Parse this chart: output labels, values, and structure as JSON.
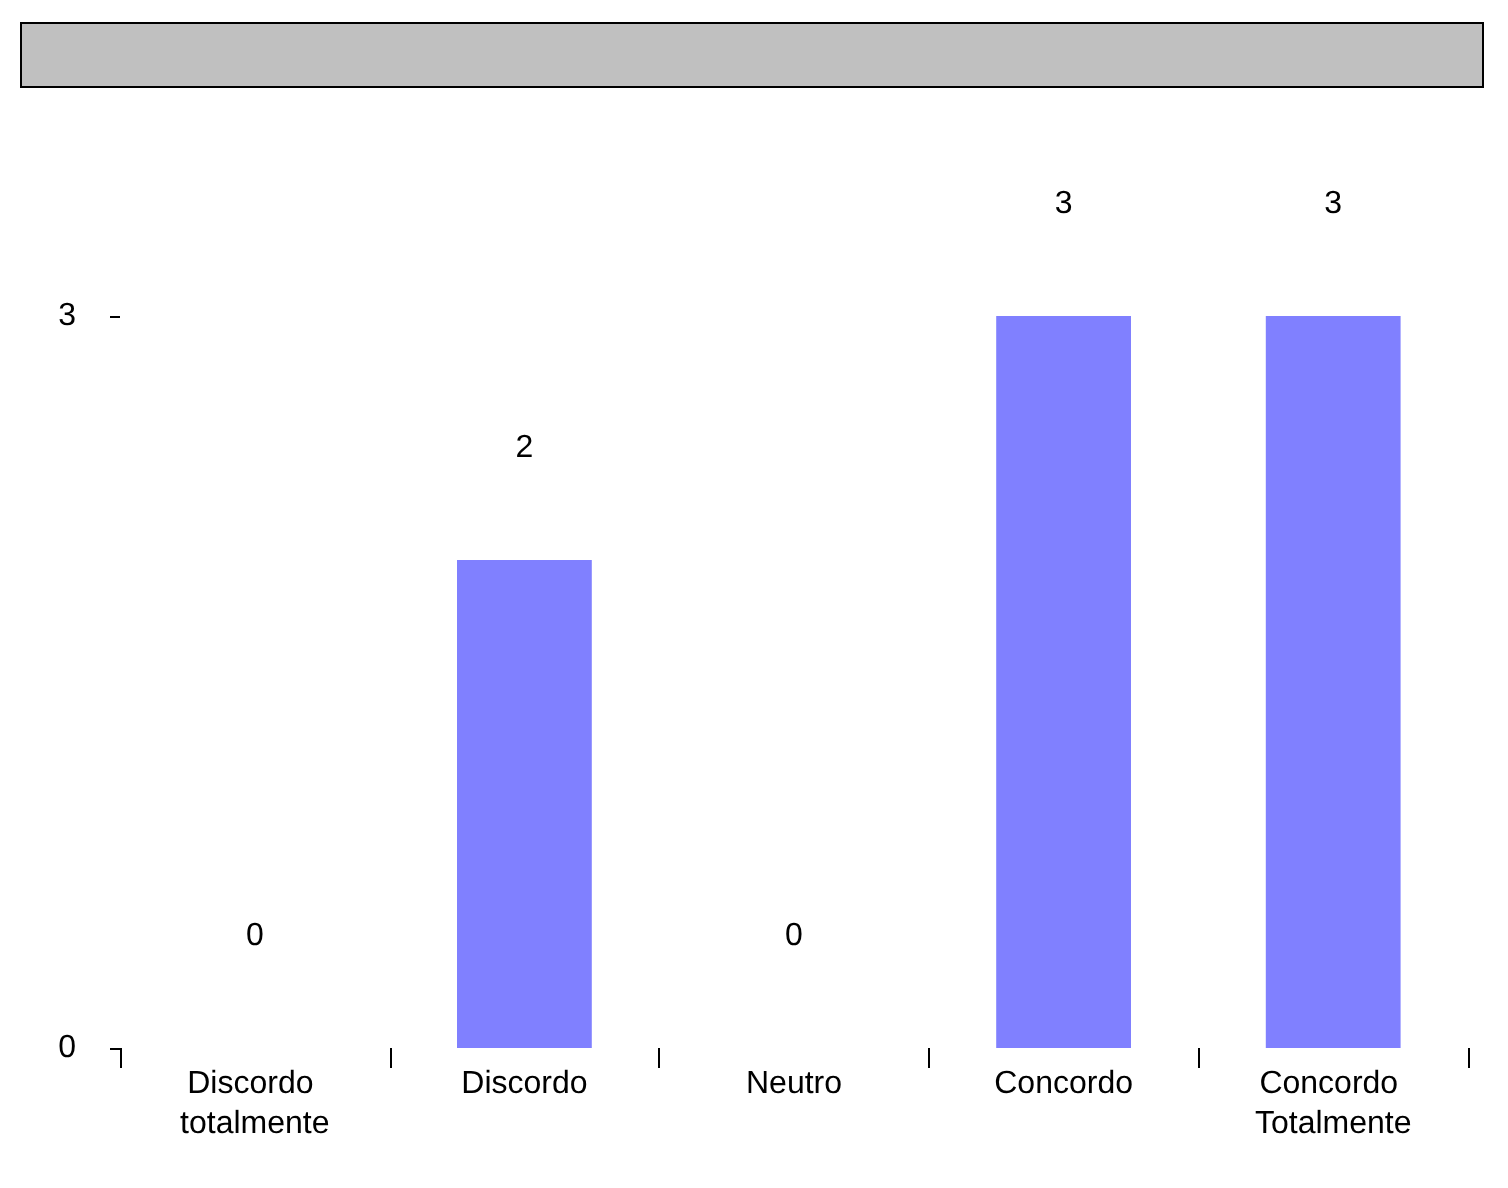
{
  "chart_data": {
    "type": "bar",
    "categories": [
      "Discordo totalmente",
      "Discordo",
      "Neutro",
      "Concordo",
      "Concordo Totalmente"
    ],
    "values": [
      0,
      2,
      0,
      3,
      3
    ],
    "color": "#8080ff",
    "ylim": [
      0,
      3
    ],
    "yticks": [
      0,
      3
    ],
    "data_labels": true,
    "grid": false
  }
}
